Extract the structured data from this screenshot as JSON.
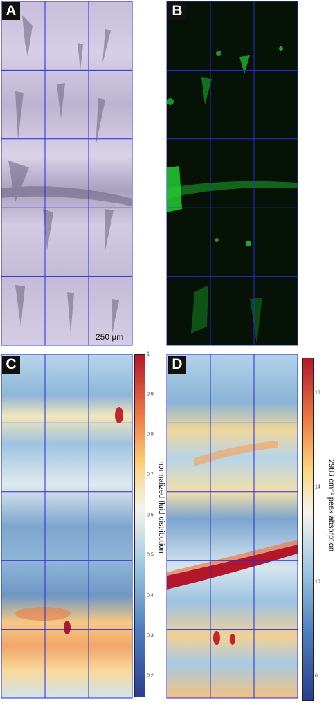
{
  "panels": [
    {
      "letter": "A",
      "content": "transmitted light micrograph"
    },
    {
      "letter": "B",
      "content": "green fluorescence micrograph"
    },
    {
      "letter": "C",
      "content": "normalized fluid distribution map"
    },
    {
      "letter": "D",
      "content": "2983 cm-1 peak absorption map"
    }
  ],
  "scale_bar": {
    "label": "250 µm"
  },
  "colorbar_c": {
    "label": "normalized fluid distribution",
    "ticks": [
      "1",
      "0.9",
      "0.8",
      "0.7",
      "0.6",
      "0.5",
      "0.4",
      "0.3",
      "0.2"
    ],
    "tick_values": [
      1,
      0.9,
      0.8,
      0.7,
      0.6,
      0.5,
      0.4,
      0.3,
      0.2
    ],
    "range": [
      0.15,
      1.0
    ]
  },
  "colorbar_d": {
    "label": "2983 cm⁻¹ peak absorption",
    "ticks": [
      "18",
      "14",
      "10",
      "6"
    ],
    "tick_values": [
      18,
      14,
      10,
      6
    ],
    "range": [
      5,
      19.5
    ]
  },
  "colors": {
    "grid": "#2a2ad8",
    "fluorescence": "#22cc33",
    "colormap": [
      "#2b3d8f",
      "#4f7fbf",
      "#9dc6e0",
      "#f4f4ec",
      "#fbd27a",
      "#ee7b45",
      "#b4172a"
    ]
  }
}
